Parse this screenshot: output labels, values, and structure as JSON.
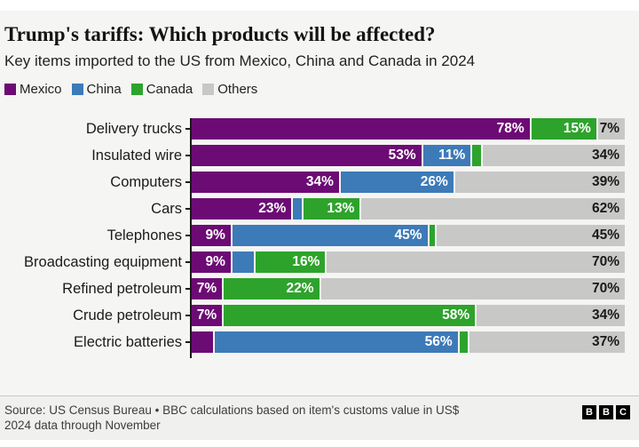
{
  "header": {
    "title": "Trump's tariffs: Which products will be affected?",
    "subtitle": "Key items imported to the US from Mexico, China and Canada in 2024"
  },
  "legend": [
    {
      "label": "Mexico",
      "color": "#6c0b74"
    },
    {
      "label": "China",
      "color": "#3d7ab8"
    },
    {
      "label": "Canada",
      "color": "#2da32c"
    },
    {
      "label": "Others",
      "color": "#c8c8c7"
    }
  ],
  "chart_data": {
    "type": "bar",
    "orientation": "horizontal",
    "stacked": true,
    "unit": "%",
    "xlim": [
      0,
      100
    ],
    "label_threshold_pct": 7,
    "categories": [
      "Delivery trucks",
      "Insulated wire",
      "Computers",
      "Cars",
      "Telephones",
      "Broadcasting equipment",
      "Refined petroleum",
      "Crude petroleum",
      "Electric batteries"
    ],
    "series": [
      {
        "name": "Mexico",
        "color": "#6c0b74",
        "values": [
          78,
          53,
          34,
          23,
          9,
          9,
          7,
          7,
          5
        ]
      },
      {
        "name": "China",
        "color": "#3d7ab8",
        "values": [
          0,
          11,
          26,
          2,
          45,
          5,
          0,
          0,
          56
        ]
      },
      {
        "name": "Canada",
        "color": "#2da32c",
        "values": [
          15,
          2,
          0,
          13,
          1,
          16,
          22,
          58,
          2
        ]
      },
      {
        "name": "Others",
        "color": "#c8c8c7",
        "values": [
          7,
          34,
          39,
          62,
          45,
          70,
          70,
          34,
          37
        ]
      }
    ]
  },
  "footer": {
    "source_line1": "Source: US Census Bureau • BBC calculations based on item's customs value in US$",
    "source_line2": "2024 data through November",
    "logo_letters": [
      "B",
      "B",
      "C"
    ]
  }
}
